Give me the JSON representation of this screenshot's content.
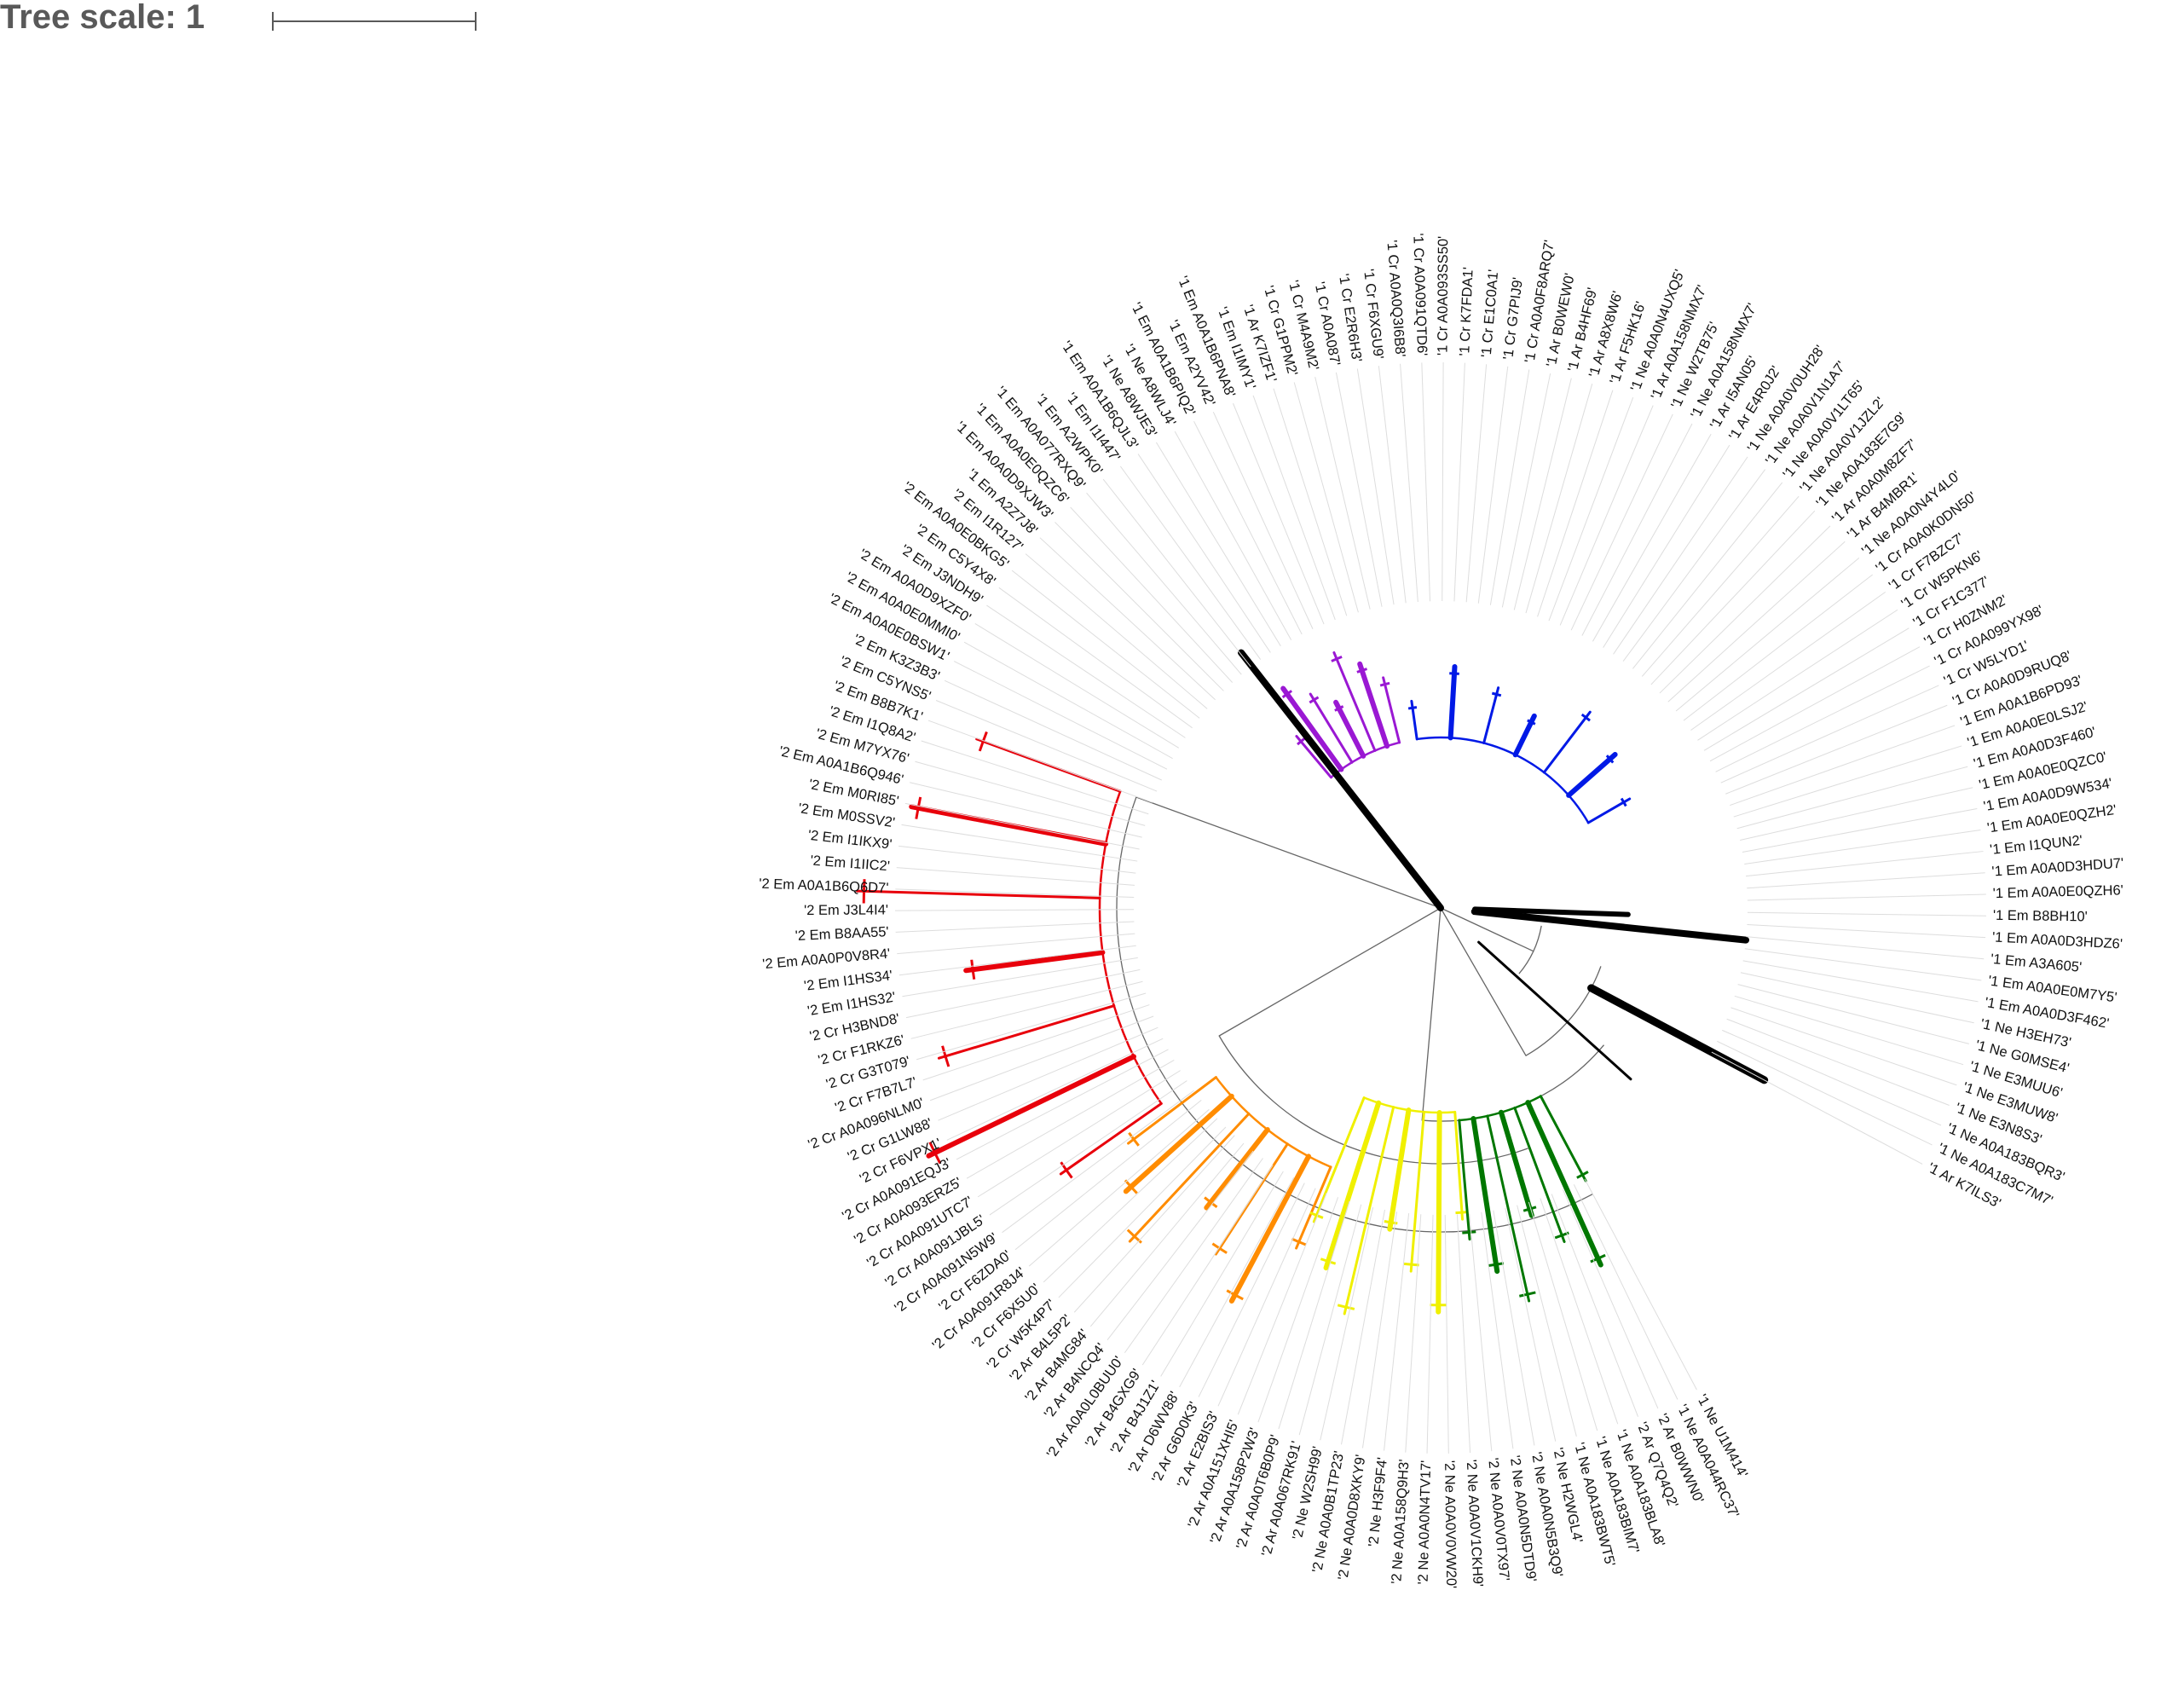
{
  "tree_scale": {
    "label": "Tree scale: 1"
  },
  "colors": {
    "red": "#e8000b",
    "orange": "#ff8c00",
    "yellow": "#f0f000",
    "green": "#007700",
    "blue": "#0019e6",
    "purple": "#9a18d3",
    "black": "#000000",
    "grey": "#666666"
  },
  "leaves": [
    {
      "label": "'1 Ar K7ILS3'",
      "color": "#888888"
    },
    {
      "label": "'1 Ne A0A183C7M7'",
      "color": "#888888"
    },
    {
      "label": "'1 Ne A0A183BQR3'",
      "color": "#888888"
    },
    {
      "label": "'1 Ne E3N8S3'",
      "color": "#888888"
    },
    {
      "label": "'1 Ne E3MUW8'",
      "color": "#000000"
    },
    {
      "label": "'1 Ne E3MUU6'",
      "color": "#000000"
    },
    {
      "label": "'1 Ne G0MSE4'",
      "color": "#000000"
    },
    {
      "label": "'1 Ne H3EH73'",
      "color": "#000000"
    },
    {
      "label": "'1 Em A0A0D3F462'",
      "color": "#000000"
    },
    {
      "label": "'1 Em A0A0E0M7Y5'",
      "color": "#000000"
    },
    {
      "label": "'1 Em A3A605'",
      "color": "#000000"
    },
    {
      "label": "'1 Em A0A0D3HDZ6'",
      "color": "#000000"
    },
    {
      "label": "'1 Em B8BH10'",
      "color": "#000000"
    },
    {
      "label": "'1 Em A0A0E0QZH6'",
      "color": "#000000"
    },
    {
      "label": "'1 Em A0A0D3HDU7'",
      "color": "#000000"
    },
    {
      "label": "'1 Em I1QUN2'",
      "color": "#000000"
    },
    {
      "label": "'1 Em A0A0E0QZH2'",
      "color": "#000000"
    },
    {
      "label": "'1 Em A0A0D9W534'",
      "color": "#000000"
    },
    {
      "label": "'1 Em A0A0E0QZC0'",
      "color": "#000000"
    },
    {
      "label": "'1 Em A0A0D3F460'",
      "color": "#000000"
    },
    {
      "label": "'1 Em A0A0E0LSJ2'",
      "color": "#888888"
    },
    {
      "label": "'1 Em A0A1B6PD93'",
      "color": "#0019e6"
    },
    {
      "label": "'1 Cr A0A0D9RUQ8'",
      "color": "#0019e6"
    },
    {
      "label": "'1 Cr W5LYD1'",
      "color": "#0019e6"
    },
    {
      "label": "'1 Cr A0A099YX98'",
      "color": "#0019e6"
    },
    {
      "label": "'1 Cr H0ZNM2'",
      "color": "#0019e6"
    },
    {
      "label": "'1 Cr F1C377'",
      "color": "#0019e6"
    },
    {
      "label": "'1 Cr W5PKN6'",
      "color": "#0019e6"
    },
    {
      "label": "'1 Cr F7BZC7'",
      "color": "#0019e6"
    },
    {
      "label": "'1 Cr A0A0K0DN50'",
      "color": "#0019e6"
    },
    {
      "label": "'1 Ne A0A0N4Y4L0'",
      "color": "#0019e6"
    },
    {
      "label": "'1 Ar B4MBR1'",
      "color": "#0019e6"
    },
    {
      "label": "'1 Ar A0A0M8ZF7'",
      "color": "#0019e6"
    },
    {
      "label": "'1 Ne A0A183E7G9'",
      "color": "#0019e6"
    },
    {
      "label": "'1 Ne A0A0V1JZL2'",
      "color": "#0019e6"
    },
    {
      "label": "'1 Ne A0A0V1LT65'",
      "color": "#0019e6"
    },
    {
      "label": "'1 Ne A0A0V1N1A7'",
      "color": "#0019e6"
    },
    {
      "label": "'1 Ne A0A0V0UH28'",
      "color": "#0019e6"
    },
    {
      "label": "'1 Ar E4R0J2'",
      "color": "#0019e6"
    },
    {
      "label": "'1 Ar I5AN05'",
      "color": "#0019e6"
    },
    {
      "label": "'1 Ne A0A158NMX7'",
      "color": "#0019e6"
    },
    {
      "label": "'1 Ne W2TB75'",
      "color": "#0019e6"
    },
    {
      "label": "'1 Ar A0A158NMX7'",
      "color": "#0019e6"
    },
    {
      "label": "'1 Ne A0A0N4UXQ5'",
      "color": "#0019e6"
    },
    {
      "label": "'1 Ar F5HK16'",
      "color": "#0019e6"
    },
    {
      "label": "'1 Ar A8X8W6'",
      "color": "#0019e6"
    },
    {
      "label": "'1 Ar B4HF69'",
      "color": "#0019e6"
    },
    {
      "label": "'1 Ar B0WEW0'",
      "color": "#0019e6"
    },
    {
      "label": "'1 Cr A0A0F8ARQ7'",
      "color": "#0019e6"
    },
    {
      "label": "'1 Cr G7PIJ9'",
      "color": "#0019e6"
    },
    {
      "label": "'1 Cr E1C0A1'",
      "color": "#0019e6"
    },
    {
      "label": "'1 Cr K7FDA1'",
      "color": "#0019e6"
    },
    {
      "label": "'1 Cr A0A093SS50'",
      "color": "#0019e6"
    },
    {
      "label": "'1 Cr A0A091QTD6'",
      "color": "#0019e6"
    },
    {
      "label": "'1 Cr A0A0Q3I6B8'",
      "color": "#0019e6"
    },
    {
      "label": "'1 Cr F6XGU9'",
      "color": "#0019e6"
    },
    {
      "label": "'1 Cr E2R6H3'",
      "color": "#0019e6"
    },
    {
      "label": "'1 Cr A0A087'",
      "color": "#0019e6"
    },
    {
      "label": "'1 Cr M4A9M2'",
      "color": "#0019e6"
    },
    {
      "label": "'1 Cr G1PPM2'",
      "color": "#9a18d3"
    },
    {
      "label": "'1 Ar K7IZF1'",
      "color": "#000000"
    },
    {
      "label": "'1 Em I1IMY1'",
      "color": "#000000"
    },
    {
      "label": "'1 Em A0A1B6PNA8'",
      "color": "#888888"
    },
    {
      "label": "'1 Em A2YV42'",
      "color": "#888888"
    },
    {
      "label": "'1 Em A0A1B6PIQ2'",
      "color": "#888888"
    },
    {
      "label": "'1 Ne A8WLJ4'",
      "color": "#888888"
    },
    {
      "label": "'1 Ne A8WJE3'",
      "color": "#888888"
    },
    {
      "label": "'1 Em A0A1B6QJL3'",
      "color": "#9a18d3"
    },
    {
      "label": "'1 Em I1I447'",
      "color": "#9a18d3"
    },
    {
      "label": "'1 Em A2WPK0'",
      "color": "#9a18d3"
    },
    {
      "label": "'1 Em A0A077RXQ9'",
      "color": "#9a18d3"
    },
    {
      "label": "'1 Em A0A0E0QZC6'",
      "color": "#9a18d3"
    },
    {
      "label": "'1 Em A0A0D9XJW3'",
      "color": "#888888"
    },
    {
      "label": "'1 Em A2Z7J8'",
      "color": "#888888"
    },
    {
      "label": "'2 Em I1R127'",
      "color": "#e8000b"
    },
    {
      "label": "'2 Em A0A0E0BKG5'",
      "color": "#e8000b"
    },
    {
      "label": "'2 Em C5Y4X8'",
      "color": "#e8000b"
    },
    {
      "label": "'2 Em J3NDH9'",
      "color": "#e8000b"
    },
    {
      "label": "'2 Em A0A0D9XZF0'",
      "color": "#e8000b"
    },
    {
      "label": "'2 Em A0A0E0MMI0'",
      "color": "#e8000b"
    },
    {
      "label": "'2 Em A0A0E0BSW1'",
      "color": "#e8000b"
    },
    {
      "label": "'2 Em K3Z3B3'",
      "color": "#e8000b"
    },
    {
      "label": "'2 Em C5YNS5'",
      "color": "#e8000b"
    },
    {
      "label": "'2 Em B8B7K1'",
      "color": "#e8000b"
    },
    {
      "label": "'2 Em I1Q8A2'",
      "color": "#e8000b"
    },
    {
      "label": "'2 Em M7YX76'",
      "color": "#e8000b"
    },
    {
      "label": "'2 Em A0A1B6Q946'",
      "color": "#e8000b"
    },
    {
      "label": "'2 Em M0RI85'",
      "color": "#e8000b"
    },
    {
      "label": "'2 Em M0SSV2'",
      "color": "#e8000b"
    },
    {
      "label": "'2 Em I1IKX9'",
      "color": "#e8000b"
    },
    {
      "label": "'2 Em I1IIC2'",
      "color": "#e8000b"
    },
    {
      "label": "'2 Em A0A1B6Q6D7'",
      "color": "#e8000b"
    },
    {
      "label": "'2 Em J3L4I4'",
      "color": "#e8000b"
    },
    {
      "label": "'2 Em B8AA55'",
      "color": "#e8000b"
    },
    {
      "label": "'2 Em A0A0P0V8R4'",
      "color": "#e8000b"
    },
    {
      "label": "'2 Em I1HS34'",
      "color": "#e8000b"
    },
    {
      "label": "'2 Em I1HS32'",
      "color": "#e8000b"
    },
    {
      "label": "'2 Cr H3BND8'",
      "color": "#ff8c00"
    },
    {
      "label": "'2 Cr F1RKZ6'",
      "color": "#ff8c00"
    },
    {
      "label": "'2 Cr G3T079'",
      "color": "#ff8c00"
    },
    {
      "label": "'2 Cr F7B7L7'",
      "color": "#ff8c00"
    },
    {
      "label": "'2 Cr A0A096NLM0'",
      "color": "#ff8c00"
    },
    {
      "label": "'2 Cr G1LW88'",
      "color": "#ff8c00"
    },
    {
      "label": "'2 Cr F6VPX1'",
      "color": "#ff8c00"
    },
    {
      "label": "'2 Cr A0A091EQJ3'",
      "color": "#ff8c00"
    },
    {
      "label": "'2 Cr A0A093ERZ5'",
      "color": "#ff8c00"
    },
    {
      "label": "'2 Cr A0A091UTC7'",
      "color": "#ff8c00"
    },
    {
      "label": "'2 Cr A0A091JBL5'",
      "color": "#ff8c00"
    },
    {
      "label": "'2 Cr A0A091N5W9'",
      "color": "#ff8c00"
    },
    {
      "label": "'2 Cr F6ZDA0'",
      "color": "#ff8c00"
    },
    {
      "label": "'2 Cr A0A091R8J4'",
      "color": "#ff8c00"
    },
    {
      "label": "'2 Cr F6X5U0'",
      "color": "#ff8c00"
    },
    {
      "label": "'2 Cr W5K4P7'",
      "color": "#ff8c00"
    },
    {
      "label": "'2 Ar B4L5P2'",
      "color": "#f0f000"
    },
    {
      "label": "'2 Ar B4MG84'",
      "color": "#f0f000"
    },
    {
      "label": "'2 Ar B4NCQ4'",
      "color": "#f0f000"
    },
    {
      "label": "'2 Ar A0A0L0BUU0'",
      "color": "#f0f000"
    },
    {
      "label": "'2 Ar B4GXG9'",
      "color": "#f0f000"
    },
    {
      "label": "'2 Ar B4J1Z1'",
      "color": "#f0f000"
    },
    {
      "label": "'2 Ar D6WV88'",
      "color": "#f0f000"
    },
    {
      "label": "'2 Ar G6D0K3'",
      "color": "#f0f000"
    },
    {
      "label": "'2 Ar E2BIS3'",
      "color": "#f0f000"
    },
    {
      "label": "'2 Ar A0A151XHI5'",
      "color": "#f0f000"
    },
    {
      "label": "'2 Ar A0A158P2W3'",
      "color": "#f0f000"
    },
    {
      "label": "'2 Ar A0A0T6B0P9'",
      "color": "#f0f000"
    },
    {
      "label": "'2 Ar A0A067RK91'",
      "color": "#f0f000"
    },
    {
      "label": "'2 Ne W2SH99'",
      "color": "#007700"
    },
    {
      "label": "'2 Ne A0A0B1TP23'",
      "color": "#007700"
    },
    {
      "label": "'2 Ne A0A0D8XKY9'",
      "color": "#007700"
    },
    {
      "label": "'2 Ne H3F9F4'",
      "color": "#007700"
    },
    {
      "label": "'2 Ne A0A158Q9H3'",
      "color": "#007700"
    },
    {
      "label": "'2 Ne A0A0N4TV17'",
      "color": "#007700"
    },
    {
      "label": "'2 Ne A0A0V0VW20'",
      "color": "#007700"
    },
    {
      "label": "'2 Ne A0A0V1CKH9'",
      "color": "#007700"
    },
    {
      "label": "'2 Ne A0A0V0TX97'",
      "color": "#007700"
    },
    {
      "label": "'2 Ne A0A0N5DTD9'",
      "color": "#007700"
    },
    {
      "label": "'2 Ne A0A0N5B3Q9'",
      "color": "#007700"
    },
    {
      "label": "'2 Ne H2WGL4'",
      "color": "#007700"
    },
    {
      "label": "'1 Ne A0A183BWT5'",
      "color": "#000000"
    },
    {
      "label": "'1 Ne A0A183BIM7'",
      "color": "#000000"
    },
    {
      "label": "'1 Ne A0A183BLA8'",
      "color": "#000000"
    },
    {
      "label": "'2 Ar Q7Q4Q2'",
      "color": "#000000"
    },
    {
      "label": "'2 Ar B0WWN0'",
      "color": "#000000"
    },
    {
      "label": "'1 Ne A0A044RC37'",
      "color": "#000000"
    },
    {
      "label": "'1 Ne U1M414'",
      "color": "#000000"
    }
  ]
}
